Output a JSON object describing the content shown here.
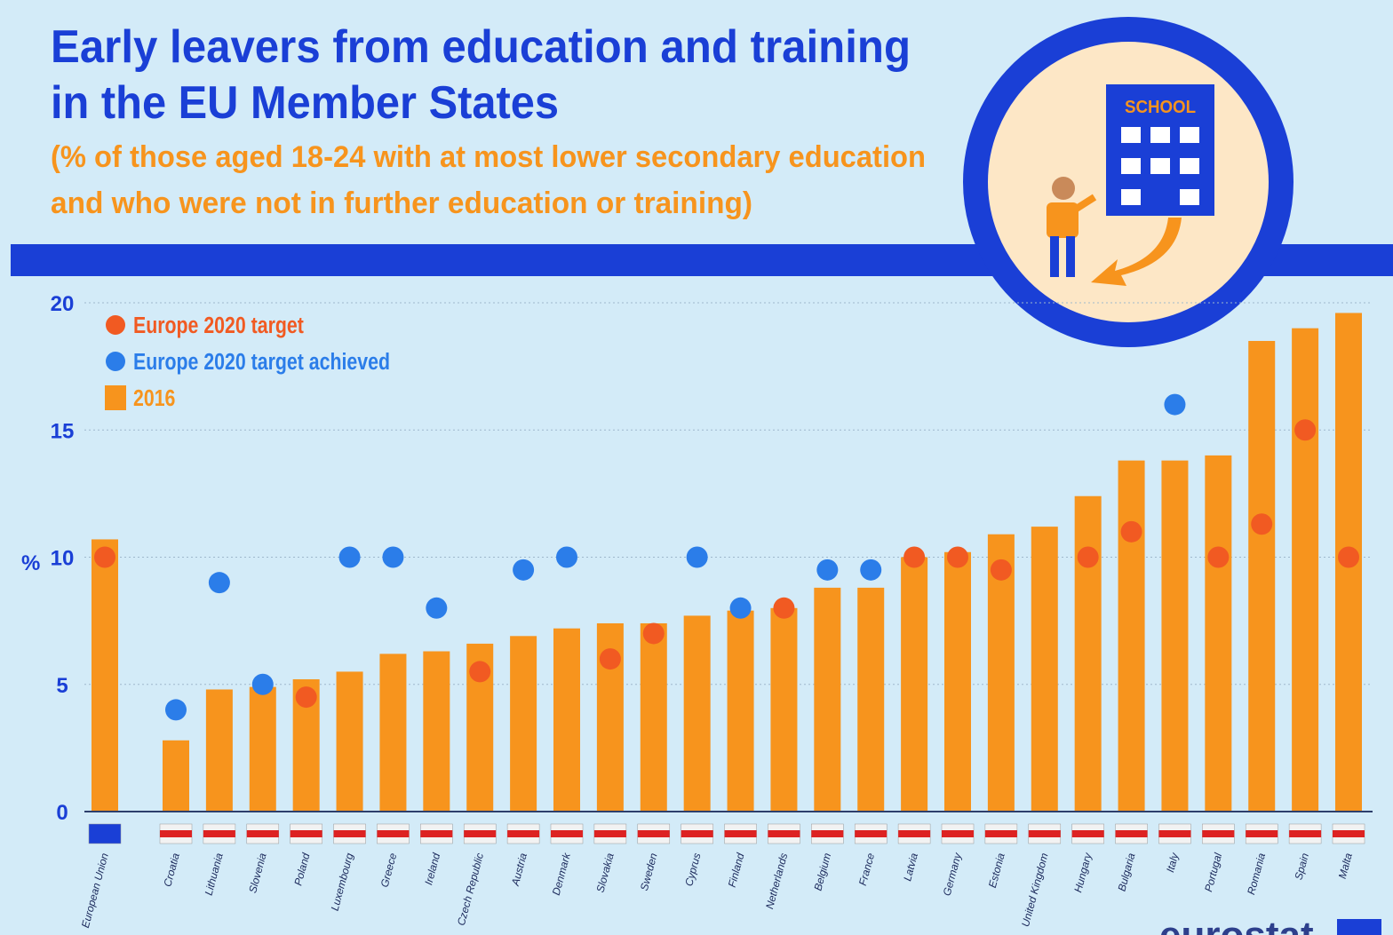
{
  "chart_data": {
    "type": "bar",
    "title": [
      "Early leavers from education and training",
      "in the EU Member States"
    ],
    "subtitle": [
      "(% of those aged 18-24 with at most lower secondary education",
      "and who were not in further education or training)"
    ],
    "y_label": "%",
    "icon_label": "SCHOOL",
    "source_logo": "eurostat",
    "categories": [
      "European Union",
      "Croatia",
      "Lithuania",
      "Slovenia",
      "Poland",
      "Luxembourg",
      "Greece",
      "Ireland",
      "Czech Republic",
      "Austria",
      "Denmark",
      "Slovakia",
      "Sweden",
      "Cyprus",
      "Finland",
      "Netherlands",
      "Belgium",
      "France",
      "Latvia",
      "Germany",
      "Estonia",
      "United Kingdom",
      "Hungary",
      "Bulgaria",
      "Italy",
      "Portugal",
      "Romania",
      "Spain",
      "Malta"
    ],
    "series": [
      {
        "name": "Europe 2020 target",
        "marker": "dot",
        "color": "#f15a22",
        "values": [
          10,
          null,
          null,
          null,
          4.5,
          null,
          null,
          null,
          5.5,
          null,
          null,
          6,
          7,
          null,
          null,
          8,
          null,
          null,
          10,
          10,
          9.5,
          null,
          10,
          11,
          null,
          10,
          11.3,
          15,
          10
        ]
      },
      {
        "name": "Europe 2020 target achieved",
        "marker": "dot",
        "color": "#2b7de9",
        "values": [
          null,
          4,
          9,
          5,
          null,
          10,
          10,
          8,
          null,
          9.5,
          10,
          null,
          null,
          10,
          8,
          null,
          9.5,
          9.5,
          null,
          null,
          null,
          null,
          null,
          null,
          16,
          null,
          null,
          null,
          null
        ]
      },
      {
        "name": "2016",
        "marker": "bar",
        "color": "#f7941d",
        "values": [
          10.7,
          2.8,
          4.8,
          4.9,
          5.2,
          5.5,
          6.2,
          6.3,
          6.6,
          6.9,
          7.2,
          7.4,
          7.4,
          7.7,
          7.9,
          8.0,
          8.8,
          8.8,
          10.0,
          10.2,
          10.9,
          11.2,
          12.4,
          13.8,
          13.8,
          14.0,
          18.5,
          19.0,
          19.6
        ]
      }
    ],
    "ylim": [
      0,
      20
    ],
    "yticks": [
      0,
      5,
      10,
      15,
      20
    ],
    "grid": true,
    "legend": "top-left"
  }
}
